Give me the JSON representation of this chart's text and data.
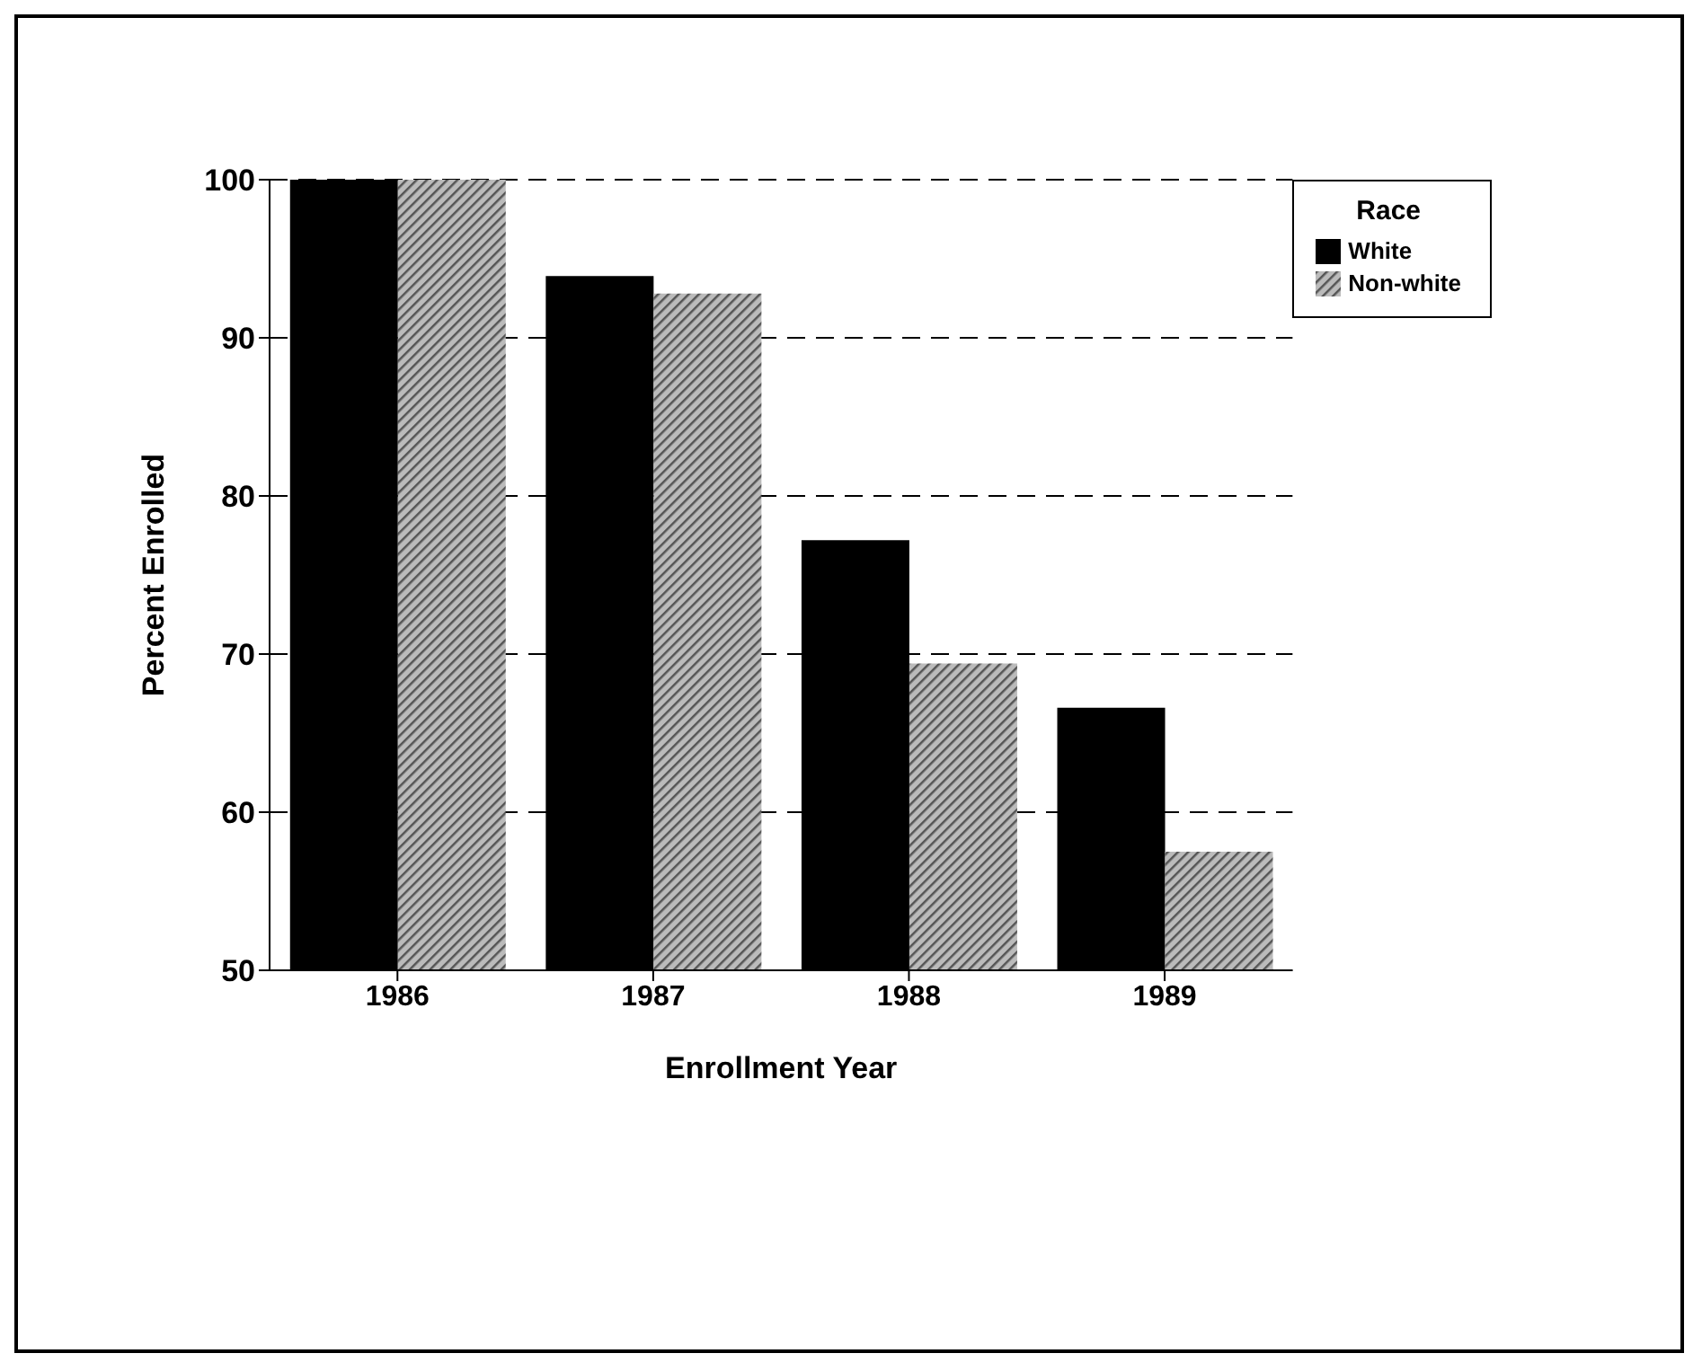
{
  "chart_data": {
    "type": "bar",
    "xlabel": "Enrollment Year",
    "ylabel": "Percent Enrolled",
    "legend_title": "Race",
    "categories": [
      "1986",
      "1987",
      "1988",
      "1989"
    ],
    "series": [
      {
        "name": "White",
        "color": "#000000",
        "values": [
          100,
          93.9,
          77.2,
          66.6
        ]
      },
      {
        "name": "Non-white",
        "color": "#555555",
        "values": [
          100,
          92.8,
          69.4,
          57.5
        ]
      }
    ],
    "ylim": [
      50,
      100
    ],
    "yticks": [
      50,
      60,
      70,
      80,
      90,
      100
    ],
    "grid": "y",
    "line_style": "dashed",
    "legend": "top right"
  }
}
